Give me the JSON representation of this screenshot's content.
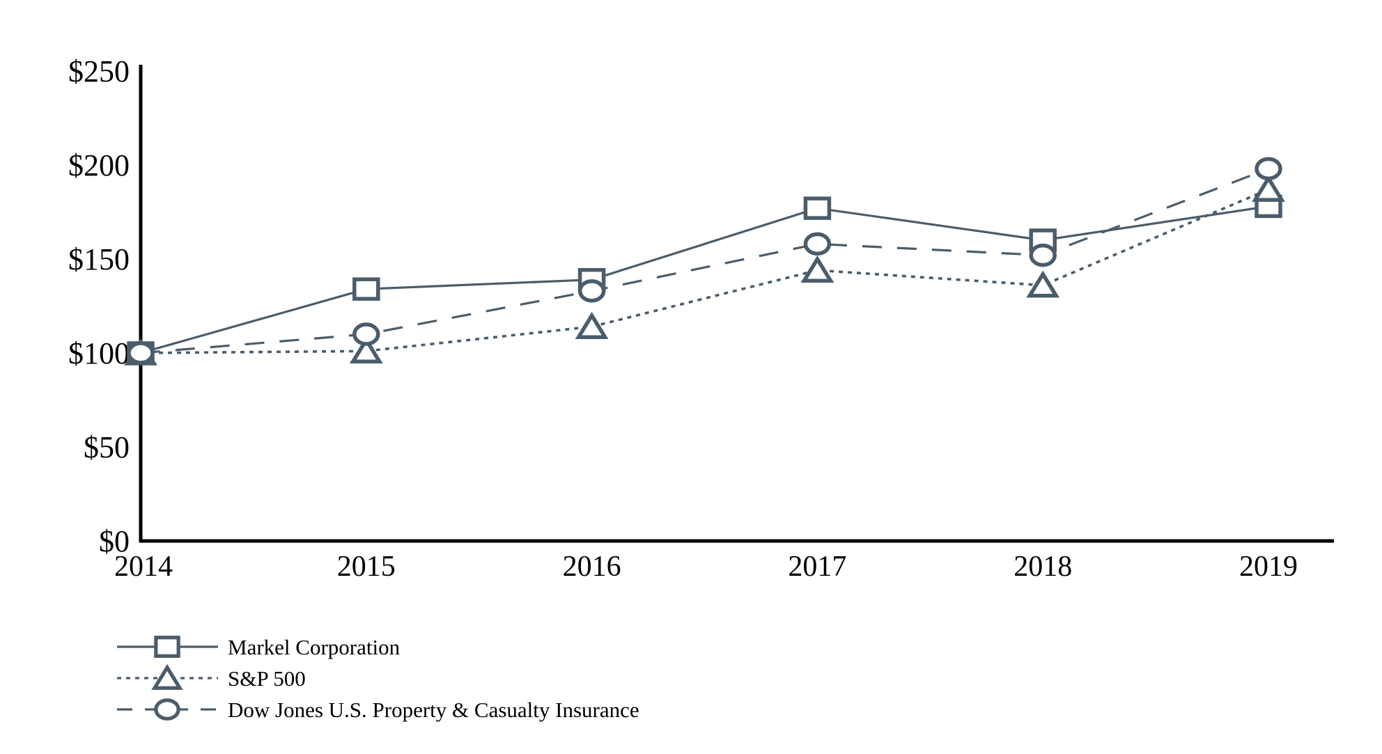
{
  "chart_data": {
    "type": "line",
    "title": "",
    "xlabel": "",
    "ylabel": "",
    "x": [
      2014,
      2015,
      2016,
      2017,
      2018,
      2019
    ],
    "x_tick_labels": [
      "2014",
      "2015",
      "2016",
      "2017",
      "2018",
      "2019"
    ],
    "y_ticks": [
      0,
      50,
      100,
      150,
      200,
      250
    ],
    "y_tick_labels": [
      "$0",
      "$50",
      "$100",
      "$150",
      "$200",
      "$250"
    ],
    "ylim": [
      0,
      250
    ],
    "grid": false,
    "legend_position": "bottom-left",
    "series": [
      {
        "name": "Markel Corporation",
        "marker": "square",
        "line_style": "solid",
        "values": [
          100,
          134,
          139,
          177,
          160,
          178
        ]
      },
      {
        "name": "S&P 500",
        "marker": "triangle",
        "line_style": "dotted",
        "values": [
          100,
          101,
          114,
          144,
          136,
          187
        ]
      },
      {
        "name": "Dow Jones U.S. Property & Casualty Insurance",
        "marker": "circle",
        "line_style": "dashed",
        "values": [
          100,
          110,
          133,
          158,
          152,
          198
        ]
      }
    ],
    "colors": {
      "series_stroke": "#4b5c6b",
      "axis": "#000000",
      "text": "#000000",
      "background": "#ffffff"
    }
  }
}
